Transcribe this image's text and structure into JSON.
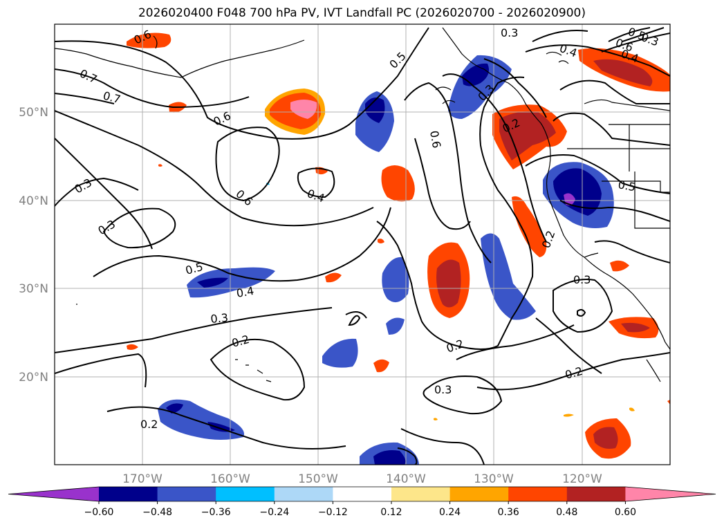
{
  "title": "2026020400 F048 700 hPa PV, IVT Landfall PC (2026020700 - 2026020900)",
  "lat_labels": [
    "50°N",
    "40°N",
    "30°N",
    "20°N"
  ],
  "lon_labels": [
    "170°W",
    "160°W",
    "150°W",
    "140°W",
    "130°W",
    "120°W"
  ],
  "colorbar": {
    "tick_labels": [
      "−0.60",
      "−0.48",
      "−0.36",
      "−0.24",
      "−0.12",
      "0.12",
      "0.24",
      "0.36",
      "0.48",
      "0.60"
    ],
    "colors": [
      "#9932cc",
      "#00008b",
      "#3a55c8",
      "#00bfff",
      "#add8f7",
      "#ffffff",
      "#fde68a",
      "#ffa500",
      "#ff4500",
      "#b22222",
      "#ff85a9"
    ],
    "extend": "both"
  },
  "contour_labels": [
    "0.6",
    "0.3",
    "0.5",
    "0.4",
    "0.6",
    "0.5",
    "0.4",
    "0.7",
    "0.7",
    "0.3",
    "0.6",
    "0.2",
    "0.3",
    "0.6",
    "0.6",
    "0.4",
    "0.5",
    "0.3",
    "0.3",
    "0.5",
    "0.2",
    "0.4",
    "0.3",
    "0.2",
    "0.2",
    "0.3",
    "0.2",
    "0.3",
    "0.2",
    "0.2"
  ],
  "layers": [
    "700 hPa PV contours",
    "IVT landfall PC shading",
    "coastlines",
    "state borders",
    "graticule"
  ]
}
